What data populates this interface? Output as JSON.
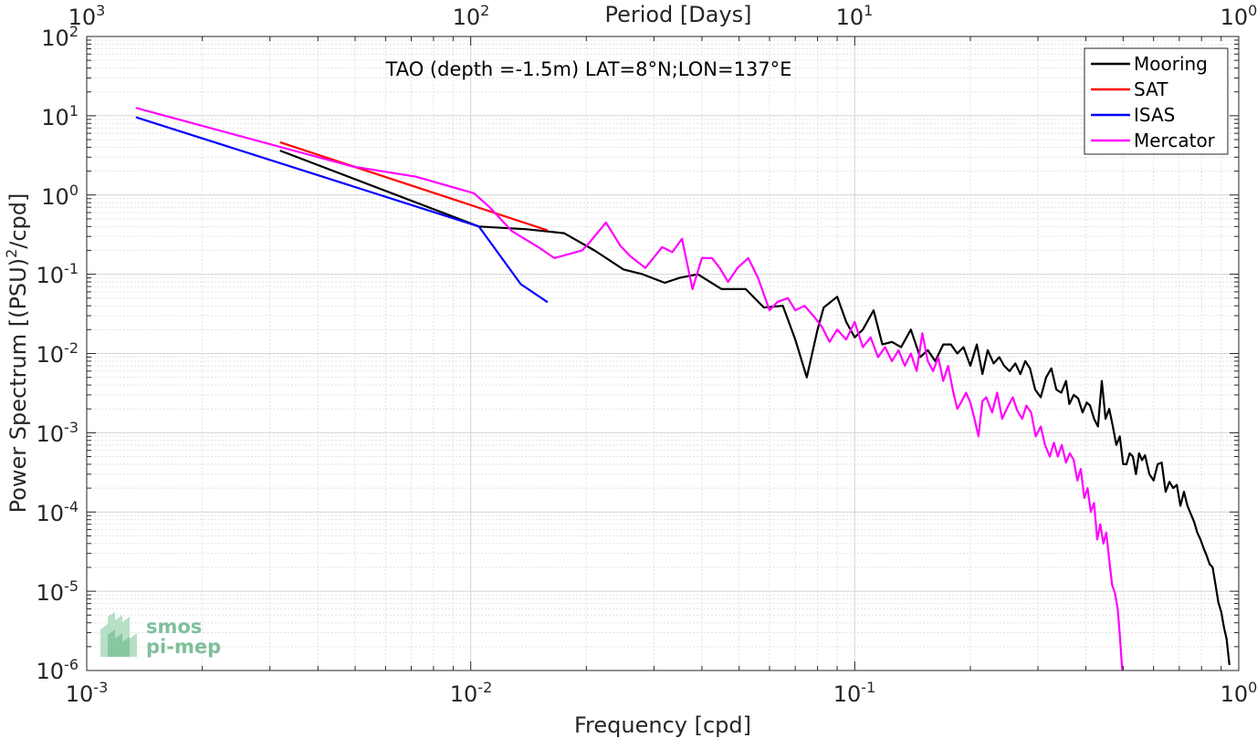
{
  "chart_data": {
    "type": "line",
    "title": "TAO (depth =-1.5m) LAT=8°N;LON=137°E",
    "xlabel": "Frequency [cpd]",
    "ylabel_main": "Power Spectrum [(PSU)",
    "ylabel_sup": "2",
    "ylabel_tail": "/cpd]",
    "top_xlabel": "Period [Days]",
    "x_scale": "log",
    "y_scale": "log",
    "xlim": [
      0.001,
      1
    ],
    "ylim": [
      1e-06,
      100
    ],
    "grid": true,
    "legend_position": "top-right",
    "x_ticks": [
      {
        "base": "10",
        "exp": "-3"
      },
      {
        "base": "10",
        "exp": "-2"
      },
      {
        "base": "10",
        "exp": "-1"
      },
      {
        "base": "10",
        "exp": "0"
      }
    ],
    "top_ticks": [
      {
        "base": "10",
        "exp": "3"
      },
      {
        "base": "10",
        "exp": "2"
      },
      {
        "base": "10",
        "exp": "1"
      },
      {
        "base": "10",
        "exp": "0"
      }
    ],
    "y_ticks": [
      {
        "base": "10",
        "exp": "-6"
      },
      {
        "base": "10",
        "exp": "-5"
      },
      {
        "base": "10",
        "exp": "-4"
      },
      {
        "base": "10",
        "exp": "-3"
      },
      {
        "base": "10",
        "exp": "-2"
      },
      {
        "base": "10",
        "exp": "-1"
      },
      {
        "base": "10",
        "exp": "0"
      },
      {
        "base": "10",
        "exp": "1"
      },
      {
        "base": "10",
        "exp": "2"
      }
    ],
    "series": [
      {
        "name": "Mooring",
        "color": "#000000",
        "points": [
          [
            0.0032,
            3.6
          ],
          [
            0.0105,
            0.4
          ],
          [
            0.014,
            0.37
          ],
          [
            0.0175,
            0.33
          ],
          [
            0.021,
            0.2
          ],
          [
            0.025,
            0.115
          ],
          [
            0.028,
            0.1
          ],
          [
            0.032,
            0.078
          ],
          [
            0.035,
            0.09
          ],
          [
            0.039,
            0.1
          ],
          [
            0.045,
            0.065
          ],
          [
            0.052,
            0.065
          ],
          [
            0.058,
            0.038
          ],
          [
            0.065,
            0.04
          ],
          [
            0.07,
            0.015
          ],
          [
            0.075,
            0.005
          ],
          [
            0.08,
            0.02
          ],
          [
            0.083,
            0.038
          ],
          [
            0.09,
            0.052
          ],
          [
            0.095,
            0.025
          ],
          [
            0.1,
            0.016
          ],
          [
            0.105,
            0.02
          ],
          [
            0.112,
            0.035
          ],
          [
            0.118,
            0.013
          ],
          [
            0.125,
            0.014
          ],
          [
            0.132,
            0.012
          ],
          [
            0.14,
            0.02
          ],
          [
            0.148,
            0.009
          ],
          [
            0.155,
            0.011
          ],
          [
            0.162,
            0.008
          ],
          [
            0.17,
            0.013
          ],
          [
            0.178,
            0.013
          ],
          [
            0.185,
            0.01
          ],
          [
            0.192,
            0.012
          ],
          [
            0.2,
            0.007
          ],
          [
            0.208,
            0.013
          ],
          [
            0.215,
            0.0055
          ],
          [
            0.222,
            0.011
          ],
          [
            0.23,
            0.0075
          ],
          [
            0.238,
            0.009
          ],
          [
            0.245,
            0.007
          ],
          [
            0.253,
            0.006
          ],
          [
            0.262,
            0.0075
          ],
          [
            0.27,
            0.0055
          ],
          [
            0.278,
            0.008
          ],
          [
            0.286,
            0.0065
          ],
          [
            0.295,
            0.0035
          ],
          [
            0.305,
            0.0028
          ],
          [
            0.315,
            0.005
          ],
          [
            0.325,
            0.0065
          ],
          [
            0.335,
            0.0035
          ],
          [
            0.345,
            0.0032
          ],
          [
            0.355,
            0.0045
          ],
          [
            0.362,
            0.0023
          ],
          [
            0.372,
            0.003
          ],
          [
            0.382,
            0.0027
          ],
          [
            0.392,
            0.0018
          ],
          [
            0.402,
            0.0024
          ],
          [
            0.41,
            0.0022
          ],
          [
            0.42,
            0.0015
          ],
          [
            0.43,
            0.0012
          ],
          [
            0.44,
            0.0045
          ],
          [
            0.45,
            0.0015
          ],
          [
            0.46,
            0.002
          ],
          [
            0.47,
            0.0012
          ],
          [
            0.48,
            0.0007
          ],
          [
            0.49,
            0.0009
          ],
          [
            0.5,
            0.0004
          ],
          [
            0.51,
            0.0004
          ],
          [
            0.52,
            0.00055
          ],
          [
            0.53,
            0.0005
          ],
          [
            0.54,
            0.0003
          ],
          [
            0.55,
            0.00055
          ],
          [
            0.56,
            0.00045
          ],
          [
            0.57,
            0.00052
          ],
          [
            0.585,
            0.0003
          ],
          [
            0.6,
            0.00025
          ],
          [
            0.615,
            0.0004
          ],
          [
            0.63,
            0.00042
          ],
          [
            0.645,
            0.00018
          ],
          [
            0.66,
            0.00024
          ],
          [
            0.675,
            0.0002
          ],
          [
            0.69,
            0.00022
          ],
          [
            0.705,
            0.00012
          ],
          [
            0.72,
            0.00018
          ],
          [
            0.735,
            0.00012
          ],
          [
            0.75,
            9.5e-05
          ],
          [
            0.765,
            7.5e-05
          ],
          [
            0.78,
            5.5e-05
          ],
          [
            0.795,
            4.5e-05
          ],
          [
            0.81,
            3.5e-05
          ],
          [
            0.825,
            2.8e-05
          ],
          [
            0.84,
            2.2e-05
          ],
          [
            0.855,
            2e-05
          ],
          [
            0.87,
            1.2e-05
          ],
          [
            0.885,
            7.2e-06
          ],
          [
            0.9,
            5.5e-06
          ],
          [
            0.915,
            3.5e-06
          ],
          [
            0.93,
            2.5e-06
          ],
          [
            0.945,
            1.2e-06
          ]
        ]
      },
      {
        "name": "SAT",
        "color": "#ff0000",
        "points": [
          [
            0.0032,
            4.6
          ],
          [
            0.0158,
            0.36
          ]
        ]
      },
      {
        "name": "ISAS",
        "color": "#0000ff",
        "points": [
          [
            0.00135,
            9.5
          ],
          [
            0.0105,
            0.4
          ],
          [
            0.0135,
            0.075
          ],
          [
            0.0158,
            0.045
          ]
        ]
      },
      {
        "name": "Mercator",
        "color": "#ff00ff",
        "points": [
          [
            0.00135,
            12.5
          ],
          [
            0.0049,
            2.3
          ],
          [
            0.0072,
            1.7
          ],
          [
            0.0102,
            1.05
          ],
          [
            0.0112,
            0.7
          ],
          [
            0.0128,
            0.35
          ],
          [
            0.015,
            0.22
          ],
          [
            0.0165,
            0.16
          ],
          [
            0.0195,
            0.2
          ],
          [
            0.0205,
            0.26
          ],
          [
            0.0225,
            0.45
          ],
          [
            0.0245,
            0.23
          ],
          [
            0.026,
            0.17
          ],
          [
            0.0285,
            0.12
          ],
          [
            0.0315,
            0.22
          ],
          [
            0.0335,
            0.19
          ],
          [
            0.0355,
            0.28
          ],
          [
            0.0378,
            0.065
          ],
          [
            0.04,
            0.16
          ],
          [
            0.0425,
            0.16
          ],
          [
            0.0445,
            0.12
          ],
          [
            0.0468,
            0.08
          ],
          [
            0.0495,
            0.12
          ],
          [
            0.0528,
            0.16
          ],
          [
            0.056,
            0.09
          ],
          [
            0.06,
            0.035
          ],
          [
            0.063,
            0.045
          ],
          [
            0.067,
            0.05
          ],
          [
            0.07,
            0.035
          ],
          [
            0.074,
            0.04
          ],
          [
            0.078,
            0.03
          ],
          [
            0.082,
            0.022
          ],
          [
            0.086,
            0.014
          ],
          [
            0.09,
            0.02
          ],
          [
            0.095,
            0.015
          ],
          [
            0.1,
            0.025
          ],
          [
            0.105,
            0.012
          ],
          [
            0.11,
            0.016
          ],
          [
            0.115,
            0.009
          ],
          [
            0.12,
            0.012
          ],
          [
            0.125,
            0.008
          ],
          [
            0.13,
            0.011
          ],
          [
            0.135,
            0.007
          ],
          [
            0.14,
            0.01
          ],
          [
            0.145,
            0.006
          ],
          [
            0.15,
            0.018
          ],
          [
            0.155,
            0.008
          ],
          [
            0.16,
            0.006
          ],
          [
            0.165,
            0.009
          ],
          [
            0.17,
            0.0045
          ],
          [
            0.175,
            0.007
          ],
          [
            0.18,
            0.0035
          ],
          [
            0.185,
            0.002
          ],
          [
            0.19,
            0.0025
          ],
          [
            0.195,
            0.0032
          ],
          [
            0.2,
            0.0024
          ],
          [
            0.205,
            0.0015
          ],
          [
            0.21,
            0.0009
          ],
          [
            0.215,
            0.0025
          ],
          [
            0.22,
            0.0028
          ],
          [
            0.228,
            0.0018
          ],
          [
            0.235,
            0.0032
          ],
          [
            0.242,
            0.0015
          ],
          [
            0.25,
            0.0021
          ],
          [
            0.258,
            0.0028
          ],
          [
            0.265,
            0.0019
          ],
          [
            0.273,
            0.0015
          ],
          [
            0.28,
            0.0022
          ],
          [
            0.288,
            0.0018
          ],
          [
            0.296,
            0.0009
          ],
          [
            0.305,
            0.0012
          ],
          [
            0.313,
            0.0007
          ],
          [
            0.322,
            0.0005
          ],
          [
            0.33,
            0.00075
          ],
          [
            0.338,
            0.0005
          ],
          [
            0.346,
            0.0007
          ],
          [
            0.355,
            0.00042
          ],
          [
            0.363,
            0.00055
          ],
          [
            0.372,
            0.00045
          ],
          [
            0.38,
            0.00025
          ],
          [
            0.388,
            0.00035
          ],
          [
            0.396,
            0.00015
          ],
          [
            0.404,
            0.0002
          ],
          [
            0.412,
            0.0001
          ],
          [
            0.42,
            0.00013
          ],
          [
            0.428,
            4.5e-05
          ],
          [
            0.436,
            7e-05
          ],
          [
            0.444,
            4e-05
          ],
          [
            0.452,
            5.5e-05
          ],
          [
            0.46,
            2.5e-05
          ],
          [
            0.468,
            1.2e-05
          ],
          [
            0.476,
            9.5e-06
          ],
          [
            0.484,
            6e-06
          ],
          [
            0.49,
            2.8e-06
          ],
          [
            0.496,
            1.2e-06
          ],
          [
            0.5,
            8e-07
          ]
        ]
      }
    ]
  },
  "logo": {
    "line1": "smos",
    "line2": "pi-mep"
  }
}
